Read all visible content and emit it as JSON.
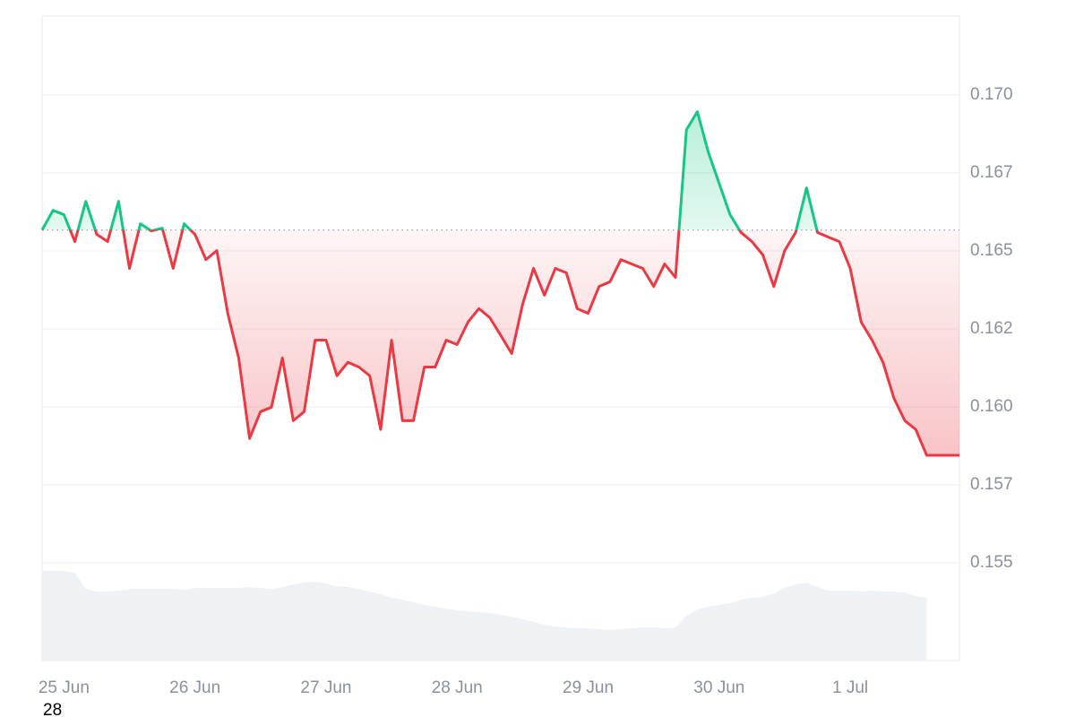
{
  "chart_data": {
    "type": "line",
    "categories": [
      null,
      null,
      "25 Jun",
      null,
      null,
      null,
      null,
      null,
      null,
      null,
      null,
      null,
      null,
      null,
      "26 Jun",
      null,
      null,
      null,
      null,
      null,
      null,
      null,
      null,
      null,
      null,
      null,
      "27 Jun",
      null,
      null,
      null,
      null,
      null,
      null,
      null,
      null,
      null,
      null,
      null,
      "28 Jun",
      null,
      null,
      null,
      null,
      null,
      null,
      null,
      null,
      null,
      null,
      null,
      "29 Jun",
      null,
      null,
      null,
      null,
      null,
      null,
      null,
      null,
      null,
      null,
      null,
      "30 Jun",
      null,
      null,
      null,
      null,
      null,
      null,
      null,
      null,
      null,
      null,
      null,
      "1 Jul",
      null,
      null,
      null,
      null,
      null,
      null,
      null,
      null,
      null,
      null
    ],
    "values": [
      0.16567,
      0.1663,
      0.16616,
      0.1653,
      0.16659,
      0.16553,
      0.1653,
      0.16659,
      0.16444,
      0.16587,
      0.16564,
      0.16573,
      0.16444,
      0.16587,
      0.16553,
      0.16472,
      0.16501,
      0.163,
      0.16157,
      0.15899,
      0.15985,
      0.15999,
      0.16157,
      0.15956,
      0.15985,
      0.16214,
      0.16214,
      0.161,
      0.16143,
      0.16128,
      0.161,
      0.15928,
      0.16214,
      0.15956,
      0.15956,
      0.16128,
      0.16128,
      0.16214,
      0.162,
      0.16272,
      0.16315,
      0.16286,
      0.16229,
      0.16171,
      0.16329,
      0.16444,
      0.16358,
      0.16444,
      0.1643,
      0.16315,
      0.163,
      0.16386,
      0.16401,
      0.16472,
      0.16458,
      0.16444,
      0.16386,
      0.16458,
      0.16415,
      0.16888,
      0.16946,
      0.16817,
      0.16716,
      0.16616,
      0.16559,
      0.1653,
      0.16487,
      0.16386,
      0.16501,
      0.16559,
      0.16702,
      0.16559,
      0.16544,
      0.1653,
      0.16444,
      0.16272,
      0.16214,
      0.16143,
      0.16028,
      0.15956,
      0.15928,
      0.15845,
      0.15845,
      0.15845,
      0.15845
    ],
    "volume": [
      100,
      100,
      100,
      98,
      80,
      77,
      77,
      78,
      80,
      80,
      80,
      80,
      80,
      79,
      81,
      81,
      81,
      81,
      81,
      82,
      81,
      80,
      82,
      85,
      87,
      88,
      86,
      83,
      82,
      80,
      77,
      74,
      70,
      68,
      65,
      62,
      60,
      58,
      56,
      55,
      54,
      53,
      51,
      49,
      46,
      43,
      40,
      38,
      37,
      36,
      36,
      35,
      34,
      35,
      36,
      37,
      37,
      36,
      37,
      50,
      57,
      60,
      62,
      64,
      68,
      70,
      71,
      75,
      82,
      85,
      87,
      82,
      78,
      78,
      78,
      77,
      78,
      77,
      77,
      76,
      72,
      70,
      null,
      null,
      null
    ],
    "up_color": "#16c784",
    "down_color": "#ea3943",
    "volume_color": "#eff2f5",
    "ylim": [
      0.151875,
      0.172523
    ],
    "yticks": [
      {
        "value": 0.155,
        "label": "0.155"
      },
      {
        "value": 0.1575,
        "label": "0.157"
      },
      {
        "value": 0.16,
        "label": "0.160"
      },
      {
        "value": 0.1625,
        "label": "0.162"
      },
      {
        "value": 0.165,
        "label": "0.165"
      },
      {
        "value": 0.1675,
        "label": "0.167"
      },
      {
        "value": 0.17,
        "label": "0.170"
      }
    ],
    "grid": true,
    "footer_text": "28"
  }
}
